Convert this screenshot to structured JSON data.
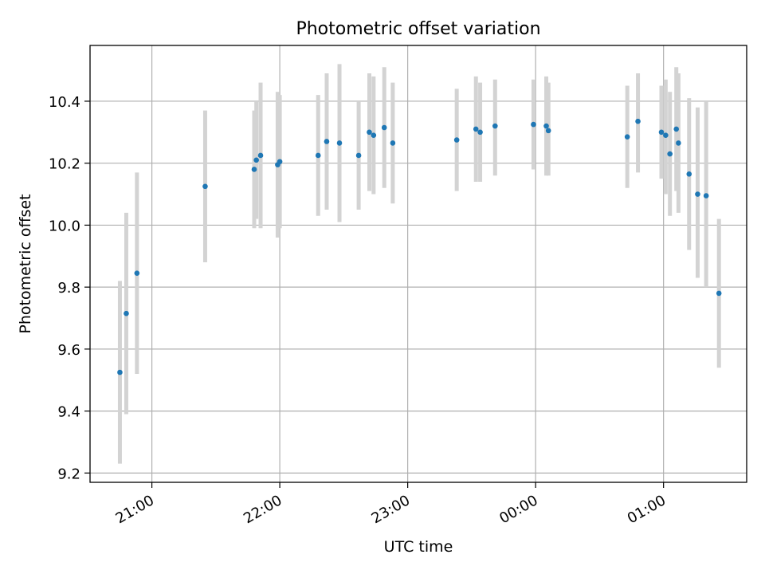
{
  "chart_data": {
    "type": "scatter",
    "title": "Photometric offset variation",
    "xlabel": "UTC time",
    "ylabel": "Photometric offset",
    "x_unit": "UTC clock time (hours past midnight may exceed 24 after 00:00)",
    "xlim": [
      "20:31",
      "01:39"
    ],
    "ylim": [
      9.17,
      10.58
    ],
    "yticks": [
      9.2,
      9.4,
      9.6,
      9.8,
      10.0,
      10.2,
      10.4
    ],
    "ytick_labels": [
      "9.2",
      "9.4",
      "9.6",
      "9.8",
      "10.0",
      "10.2",
      "10.4"
    ],
    "xticks": [
      "21:00",
      "22:00",
      "23:00",
      "00:00",
      "01:00"
    ],
    "xtick_labels": [
      "21:00",
      "22:00",
      "23:00",
      "00:00",
      "01:00"
    ],
    "grid": true,
    "marker_color": "#1f77b4",
    "errorbar_color": "#d3d3d3",
    "points": [
      {
        "t": "20:45",
        "y": 9.525,
        "lo": 9.23,
        "hi": 9.82
      },
      {
        "t": "20:48",
        "y": 9.715,
        "lo": 9.39,
        "hi": 10.04
      },
      {
        "t": "20:53",
        "y": 9.845,
        "lo": 9.52,
        "hi": 10.17
      },
      {
        "t": "21:25",
        "y": 10.125,
        "lo": 9.88,
        "hi": 10.37
      },
      {
        "t": "21:48",
        "y": 10.18,
        "lo": 9.99,
        "hi": 10.37
      },
      {
        "t": "21:49",
        "y": 10.21,
        "lo": 10.02,
        "hi": 10.4
      },
      {
        "t": "21:51",
        "y": 10.225,
        "lo": 9.99,
        "hi": 10.46
      },
      {
        "t": "21:59",
        "y": 10.195,
        "lo": 9.96,
        "hi": 10.43
      },
      {
        "t": "22:00",
        "y": 10.205,
        "lo": 9.99,
        "hi": 10.42
      },
      {
        "t": "22:18",
        "y": 10.225,
        "lo": 10.03,
        "hi": 10.42
      },
      {
        "t": "22:22",
        "y": 10.27,
        "lo": 10.05,
        "hi": 10.49
      },
      {
        "t": "22:28",
        "y": 10.265,
        "lo": 10.01,
        "hi": 10.52
      },
      {
        "t": "22:37",
        "y": 10.225,
        "lo": 10.05,
        "hi": 10.4
      },
      {
        "t": "22:42",
        "y": 10.3,
        "lo": 10.11,
        "hi": 10.49
      },
      {
        "t": "22:44",
        "y": 10.29,
        "lo": 10.1,
        "hi": 10.48
      },
      {
        "t": "22:49",
        "y": 10.315,
        "lo": 10.12,
        "hi": 10.51
      },
      {
        "t": "22:53",
        "y": 10.265,
        "lo": 10.07,
        "hi": 10.46
      },
      {
        "t": "23:23",
        "y": 10.275,
        "lo": 10.11,
        "hi": 10.44
      },
      {
        "t": "23:32",
        "y": 10.31,
        "lo": 10.14,
        "hi": 10.48
      },
      {
        "t": "23:34",
        "y": 10.3,
        "lo": 10.14,
        "hi": 10.46
      },
      {
        "t": "23:41",
        "y": 10.32,
        "lo": 10.16,
        "hi": 10.47
      },
      {
        "t": "23:59",
        "y": 10.325,
        "lo": 10.18,
        "hi": 10.47
      },
      {
        "t": "00:05",
        "y": 10.32,
        "lo": 10.16,
        "hi": 10.48
      },
      {
        "t": "00:06",
        "y": 10.305,
        "lo": 10.16,
        "hi": 10.46
      },
      {
        "t": "00:43",
        "y": 10.285,
        "lo": 10.12,
        "hi": 10.45
      },
      {
        "t": "00:48",
        "y": 10.335,
        "lo": 10.17,
        "hi": 10.49
      },
      {
        "t": "00:59",
        "y": 10.3,
        "lo": 10.15,
        "hi": 10.45
      },
      {
        "t": "01:01",
        "y": 10.29,
        "lo": 10.1,
        "hi": 10.47
      },
      {
        "t": "01:03",
        "y": 10.23,
        "lo": 10.03,
        "hi": 10.43
      },
      {
        "t": "01:06",
        "y": 10.31,
        "lo": 10.11,
        "hi": 10.51
      },
      {
        "t": "01:07",
        "y": 10.265,
        "lo": 10.04,
        "hi": 10.49
      },
      {
        "t": "01:12",
        "y": 10.165,
        "lo": 9.92,
        "hi": 10.41
      },
      {
        "t": "01:16",
        "y": 10.1,
        "lo": 9.83,
        "hi": 10.38
      },
      {
        "t": "01:20",
        "y": 10.095,
        "lo": 9.8,
        "hi": 10.4
      },
      {
        "t": "01:26",
        "y": 9.78,
        "lo": 9.54,
        "hi": 10.02
      }
    ]
  }
}
